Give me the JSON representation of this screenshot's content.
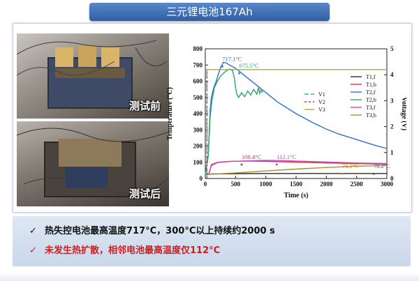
{
  "title": "三元锂电池167Ah",
  "photos": [
    {
      "label": "测试前"
    },
    {
      "label": "测试后"
    }
  ],
  "bullets": [
    {
      "check": "✓",
      "text": "热失控电池最高温度717°C，300°C以上持续约2000 s",
      "color": "#111111"
    },
    {
      "check": "✓",
      "text": "未发生热扩散，相邻电池最高温度仅112°C",
      "color": "#cc1f1f"
    }
  ],
  "chart_data": {
    "type": "line",
    "xlabel": "Time (s)",
    "ylabel": "Temperature (°C)",
    "ylabel_right": "Voltage (V)",
    "xlim": [
      0,
      3000
    ],
    "ylim": [
      0,
      800
    ],
    "ylim_right": [
      0,
      5
    ],
    "xticks": [
      0,
      500,
      1000,
      1500,
      2000,
      2500,
      3000
    ],
    "yticks": [
      0,
      100,
      200,
      300,
      400,
      500,
      600,
      700,
      800
    ],
    "yticks_right": [
      0,
      1,
      2,
      3,
      4,
      5
    ],
    "legend_left": [
      "V1",
      "V2",
      "V3"
    ],
    "legend_right": [
      "T1,f",
      "T1,b",
      "T2,f",
      "T2,b",
      "T3,f",
      "T3,b"
    ],
    "annotations": [
      "717.1°C",
      "675.5°C",
      "108.4°C",
      "112.1°C",
      "78.1°C",
      "78.2°C"
    ],
    "series": [
      {
        "name": "T1,f",
        "axis": "left",
        "color": "#2a2a2a",
        "x": [
          0,
          60,
          100,
          300,
          600,
          1000,
          1500,
          2000,
          2500,
          3000
        ],
        "y": [
          25,
          26,
          28,
          29,
          30,
          31,
          31,
          31,
          31,
          31
        ]
      },
      {
        "name": "T1,b",
        "axis": "left",
        "color": "#d8323c",
        "x": [
          0,
          60,
          100,
          200,
          400,
          700,
          1000,
          1500,
          2000,
          2500,
          3000
        ],
        "y": [
          25,
          30,
          85,
          100,
          106,
          108,
          106,
          101,
          96,
          92,
          88
        ]
      },
      {
        "name": "T2,f",
        "axis": "left",
        "color": "#2e6fd2",
        "x": [
          0,
          50,
          80,
          100,
          140,
          180,
          220,
          260,
          300,
          350,
          400,
          450,
          500,
          600,
          800,
          1000,
          1200,
          1500,
          1800,
          2000,
          2200,
          2500,
          2800,
          3000
        ],
        "y": [
          25,
          150,
          420,
          500,
          560,
          600,
          650,
          690,
          717,
          712,
          700,
          690,
          680,
          650,
          590,
          530,
          470,
          400,
          340,
          305,
          275,
          240,
          205,
          185
        ]
      },
      {
        "name": "T2,b",
        "axis": "left",
        "color": "#2ea271",
        "x": [
          0,
          50,
          80,
          110,
          150,
          200,
          250,
          300,
          350,
          400,
          450,
          480,
          500,
          520,
          550,
          600,
          650,
          700,
          750,
          800,
          850,
          880,
          900,
          920,
          950
        ],
        "y": [
          25,
          140,
          380,
          480,
          560,
          600,
          630,
          650,
          665,
          675,
          665,
          620,
          560,
          520,
          500,
          530,
          505,
          540,
          515,
          550,
          520,
          560,
          525,
          545,
          530
        ]
      },
      {
        "name": "T3,f",
        "axis": "left",
        "color": "#c44ab7",
        "x": [
          0,
          60,
          100,
          200,
          400,
          700,
          1000,
          1200,
          1500,
          2000,
          2500,
          3000
        ],
        "y": [
          25,
          30,
          80,
          98,
          105,
          109,
          112,
          111,
          108,
          102,
          96,
          92
        ]
      },
      {
        "name": "T3,b",
        "axis": "left",
        "color": "#b08d2a",
        "x": [
          0,
          100,
          300,
          600,
          1000,
          1500,
          2000,
          2500,
          3000
        ],
        "y": [
          25,
          27,
          30,
          37,
          47,
          58,
          68,
          76,
          80
        ]
      },
      {
        "name": "V1",
        "axis": "right",
        "color": "#27b8b0",
        "dash": "6 3",
        "x": [
          0,
          25,
          26,
          80
        ],
        "y": [
          4.2,
          4.2,
          0,
          0
        ]
      },
      {
        "name": "V2",
        "axis": "right",
        "color": "#b0403b",
        "dash": "3 3",
        "x": [
          0,
          25,
          26,
          80
        ],
        "y": [
          4.2,
          4.2,
          0,
          0
        ]
      },
      {
        "name": "V3",
        "axis": "right",
        "color": "#b3a830",
        "x": [
          0,
          3000
        ],
        "y": [
          4.2,
          4.2
        ]
      }
    ]
  }
}
